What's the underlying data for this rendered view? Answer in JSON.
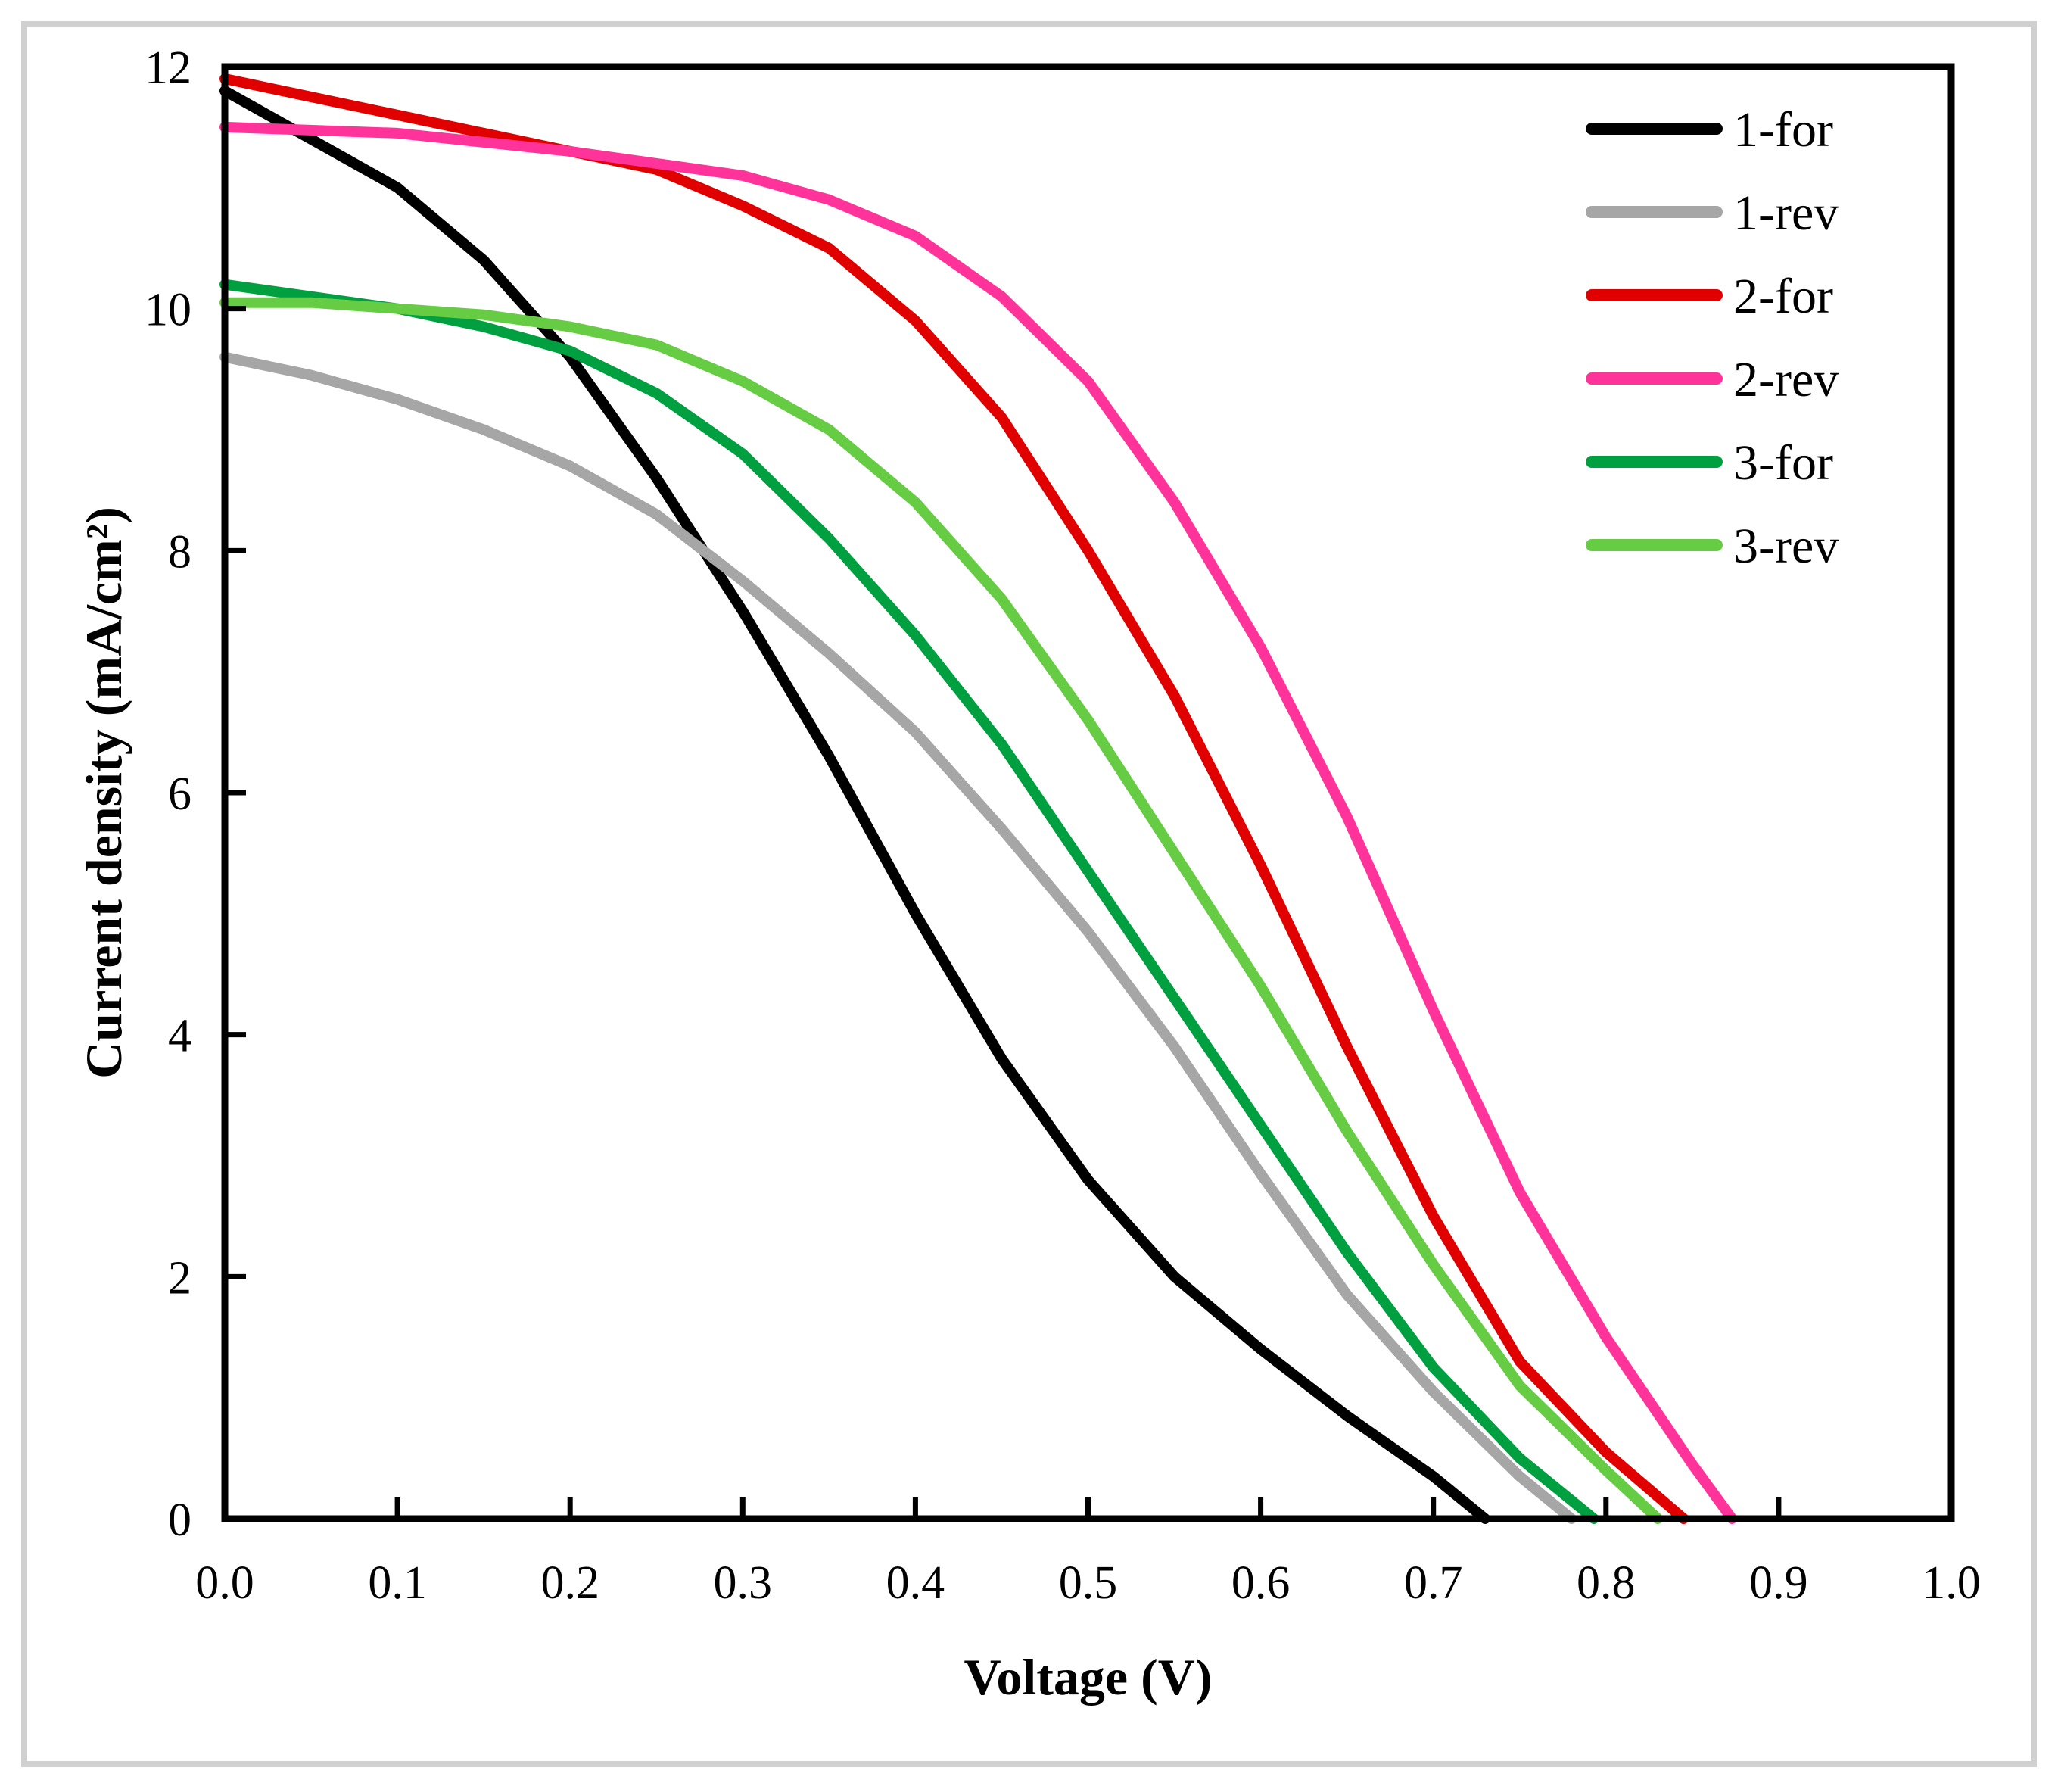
{
  "chart_data": {
    "type": "line",
    "title": "",
    "xlabel": "Voltage (V)",
    "ylabel": "Current density (mA/cm²)",
    "xlim": [
      0.0,
      1.0
    ],
    "ylim": [
      0,
      12
    ],
    "grid": false,
    "legend_position": "top-right",
    "x_ticks": [
      "0.0",
      "0.1",
      "0.2",
      "0.3",
      "0.4",
      "0.5",
      "0.6",
      "0.7",
      "0.8",
      "0.9",
      "1.0"
    ],
    "y_ticks": [
      "0",
      "2",
      "4",
      "6",
      "8",
      "10",
      "12"
    ],
    "series": [
      {
        "name": "1-for",
        "color": "#000000",
        "x": [
          0.0,
          0.05,
          0.1,
          0.15,
          0.2,
          0.25,
          0.3,
          0.35,
          0.4,
          0.45,
          0.5,
          0.55,
          0.6,
          0.65,
          0.7,
          0.73
        ],
        "y": [
          11.8,
          11.4,
          11.0,
          10.4,
          9.6,
          8.6,
          7.5,
          6.3,
          5.0,
          3.8,
          2.8,
          2.0,
          1.4,
          0.85,
          0.35,
          0.0
        ]
      },
      {
        "name": "1-rev",
        "color": "#a6a6a6",
        "x": [
          0.0,
          0.05,
          0.1,
          0.15,
          0.2,
          0.25,
          0.3,
          0.35,
          0.4,
          0.45,
          0.5,
          0.55,
          0.6,
          0.65,
          0.7,
          0.75,
          0.78
        ],
        "y": [
          9.6,
          9.45,
          9.25,
          9.0,
          8.7,
          8.3,
          7.75,
          7.15,
          6.5,
          5.7,
          4.85,
          3.9,
          2.85,
          1.85,
          1.05,
          0.35,
          0.0
        ]
      },
      {
        "name": "2-for",
        "color": "#e00000",
        "x": [
          0.0,
          0.05,
          0.1,
          0.15,
          0.2,
          0.25,
          0.3,
          0.35,
          0.4,
          0.45,
          0.5,
          0.55,
          0.6,
          0.65,
          0.7,
          0.75,
          0.8,
          0.845
        ],
        "y": [
          11.9,
          11.75,
          11.6,
          11.45,
          11.3,
          11.15,
          10.85,
          10.5,
          9.9,
          9.1,
          8.0,
          6.8,
          5.4,
          3.9,
          2.5,
          1.3,
          0.55,
          0.0
        ]
      },
      {
        "name": "2-rev",
        "color": "#ff3399",
        "x": [
          0.0,
          0.1,
          0.2,
          0.25,
          0.3,
          0.35,
          0.4,
          0.45,
          0.5,
          0.55,
          0.6,
          0.65,
          0.7,
          0.75,
          0.8,
          0.85,
          0.873
        ],
        "y": [
          11.5,
          11.45,
          11.3,
          11.2,
          11.1,
          10.9,
          10.6,
          10.1,
          9.4,
          8.4,
          7.2,
          5.8,
          4.2,
          2.7,
          1.5,
          0.45,
          0.0
        ]
      },
      {
        "name": "3-for",
        "color": "#00a040",
        "x": [
          0.0,
          0.05,
          0.1,
          0.15,
          0.2,
          0.25,
          0.3,
          0.35,
          0.4,
          0.45,
          0.5,
          0.55,
          0.6,
          0.65,
          0.7,
          0.75,
          0.793
        ],
        "y": [
          10.2,
          10.1,
          10.0,
          9.85,
          9.65,
          9.3,
          8.8,
          8.1,
          7.3,
          6.4,
          5.35,
          4.3,
          3.25,
          2.2,
          1.25,
          0.5,
          0.0
        ]
      },
      {
        "name": "3-rev",
        "color": "#66cc44",
        "x": [
          0.0,
          0.05,
          0.1,
          0.15,
          0.2,
          0.25,
          0.3,
          0.35,
          0.4,
          0.45,
          0.5,
          0.55,
          0.6,
          0.65,
          0.7,
          0.75,
          0.8,
          0.83
        ],
        "y": [
          10.05,
          10.05,
          10.0,
          9.95,
          9.85,
          9.7,
          9.4,
          9.0,
          8.4,
          7.6,
          6.6,
          5.5,
          4.4,
          3.2,
          2.1,
          1.1,
          0.4,
          0.0
        ]
      }
    ]
  }
}
